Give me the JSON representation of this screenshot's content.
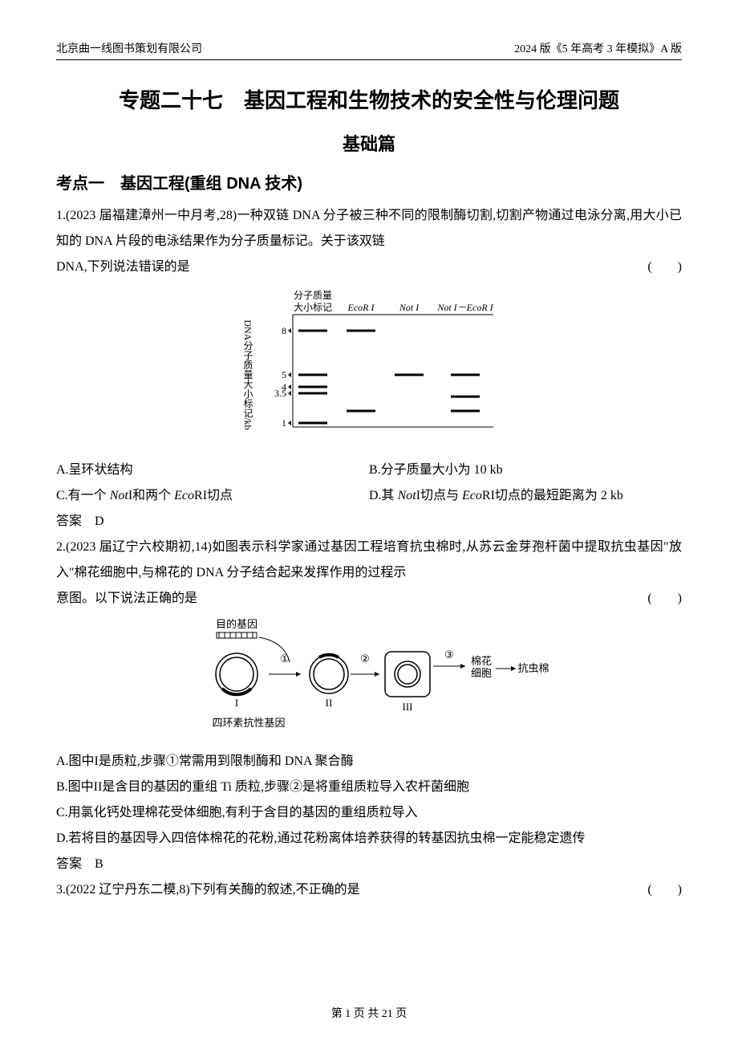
{
  "header": {
    "left": "北京曲一线图书策划有限公司",
    "right": "2024 版《5 年高考 3 年模拟》A 版"
  },
  "title": "专题二十七　基因工程和生物技术的安全性与伦理问题",
  "subtitle": "基础篇",
  "section1": "考点一　基因工程(重组 DNA 技术)",
  "q1": {
    "stem": "1.(2023 届福建漳州一中月考,28)一种双链 DNA 分子被三种不同的限制酶切割,切割产物通过电泳分离,用大小已知的 DNA 片段的电泳结果作为分子质量标记。关于该双链",
    "stem_tail": "DNA,下列说法错误的是",
    "paren": "(　　)",
    "gel": {
      "y_label": "DNA分子质量大小标记/kb",
      "top_label": "分子质量\n大小标记",
      "lanes": [
        "EcoR I",
        "Not I",
        "Not I－EcoR I"
      ],
      "ticks": [
        "8",
        "5",
        "4",
        "3.5",
        "1"
      ],
      "marker_bands_kb": [
        8,
        5,
        4,
        3.5,
        1
      ],
      "lane_bands": {
        "EcoR I": [
          8,
          2
        ],
        "Not I": [
          5,
          5
        ],
        "Not I－EcoR I": [
          5,
          3,
          2
        ]
      },
      "colors": {
        "band": "#000000",
        "axis": "#000000",
        "bg": "#ffffff"
      },
      "band_stroke_width": 3,
      "axis_stroke_width": 1,
      "font_size_label": 12,
      "font_size_tick": 12
    },
    "opts": {
      "A": "A.呈环状结构",
      "B": "B.分子质量大小为 10 kb",
      "C_pre": "C.有一个 ",
      "C_i1": "Not",
      "C_mid1": "I和两个 ",
      "C_i2": "Eco",
      "C_post": "RI切点",
      "D_pre": "D.其 ",
      "D_i1": "Not",
      "D_mid1": "I切点与 ",
      "D_i2": "Eco",
      "D_post": "RI切点的最短距离为 2 kb"
    },
    "answer": "答案　D"
  },
  "q2": {
    "stem": "2.(2023 届辽宁六校期初,14)如图表示科学家通过基因工程培育抗虫棉时,从苏云金芽孢杆菌中提取抗虫基因\"放入\"棉花细胞中,与棉花的 DNA 分子结合起来发挥作用的过程示",
    "stem_tail": "意图。以下说法正确的是",
    "paren": "(　　)",
    "diagram": {
      "labels": {
        "target_gene": "目的基因",
        "I": "I",
        "II": "II",
        "III": "III",
        "tet": "四环素抗性基因",
        "step1": "①",
        "step2": "②",
        "step3": "③",
        "cotton_cell": "棉花\n细胞",
        "result": "抗虫棉"
      },
      "colors": {
        "stroke": "#000000",
        "bg": "#ffffff"
      },
      "stroke_width": 1.5,
      "font_size": 13
    },
    "opts": {
      "A": "A.图中I是质粒,步骤①常需用到限制酶和 DNA 聚合酶",
      "B": "B.图中II是含目的基因的重组 Ti 质粒,步骤②是将重组质粒导入农杆菌细胞",
      "C": "C.用氯化钙处理棉花受体细胞,有利于含目的基因的重组质粒导入",
      "D": "D.若将目的基因导入四倍体棉花的花粉,通过花粉离体培养获得的转基因抗虫棉一定能稳定遗传"
    },
    "answer": "答案　B"
  },
  "q3": {
    "stem": "3.(2022 辽宁丹东二模,8)下列有关酶的叙述,不正确的是",
    "paren": "(　　)"
  },
  "footer": "第 1 页 共 21 页"
}
